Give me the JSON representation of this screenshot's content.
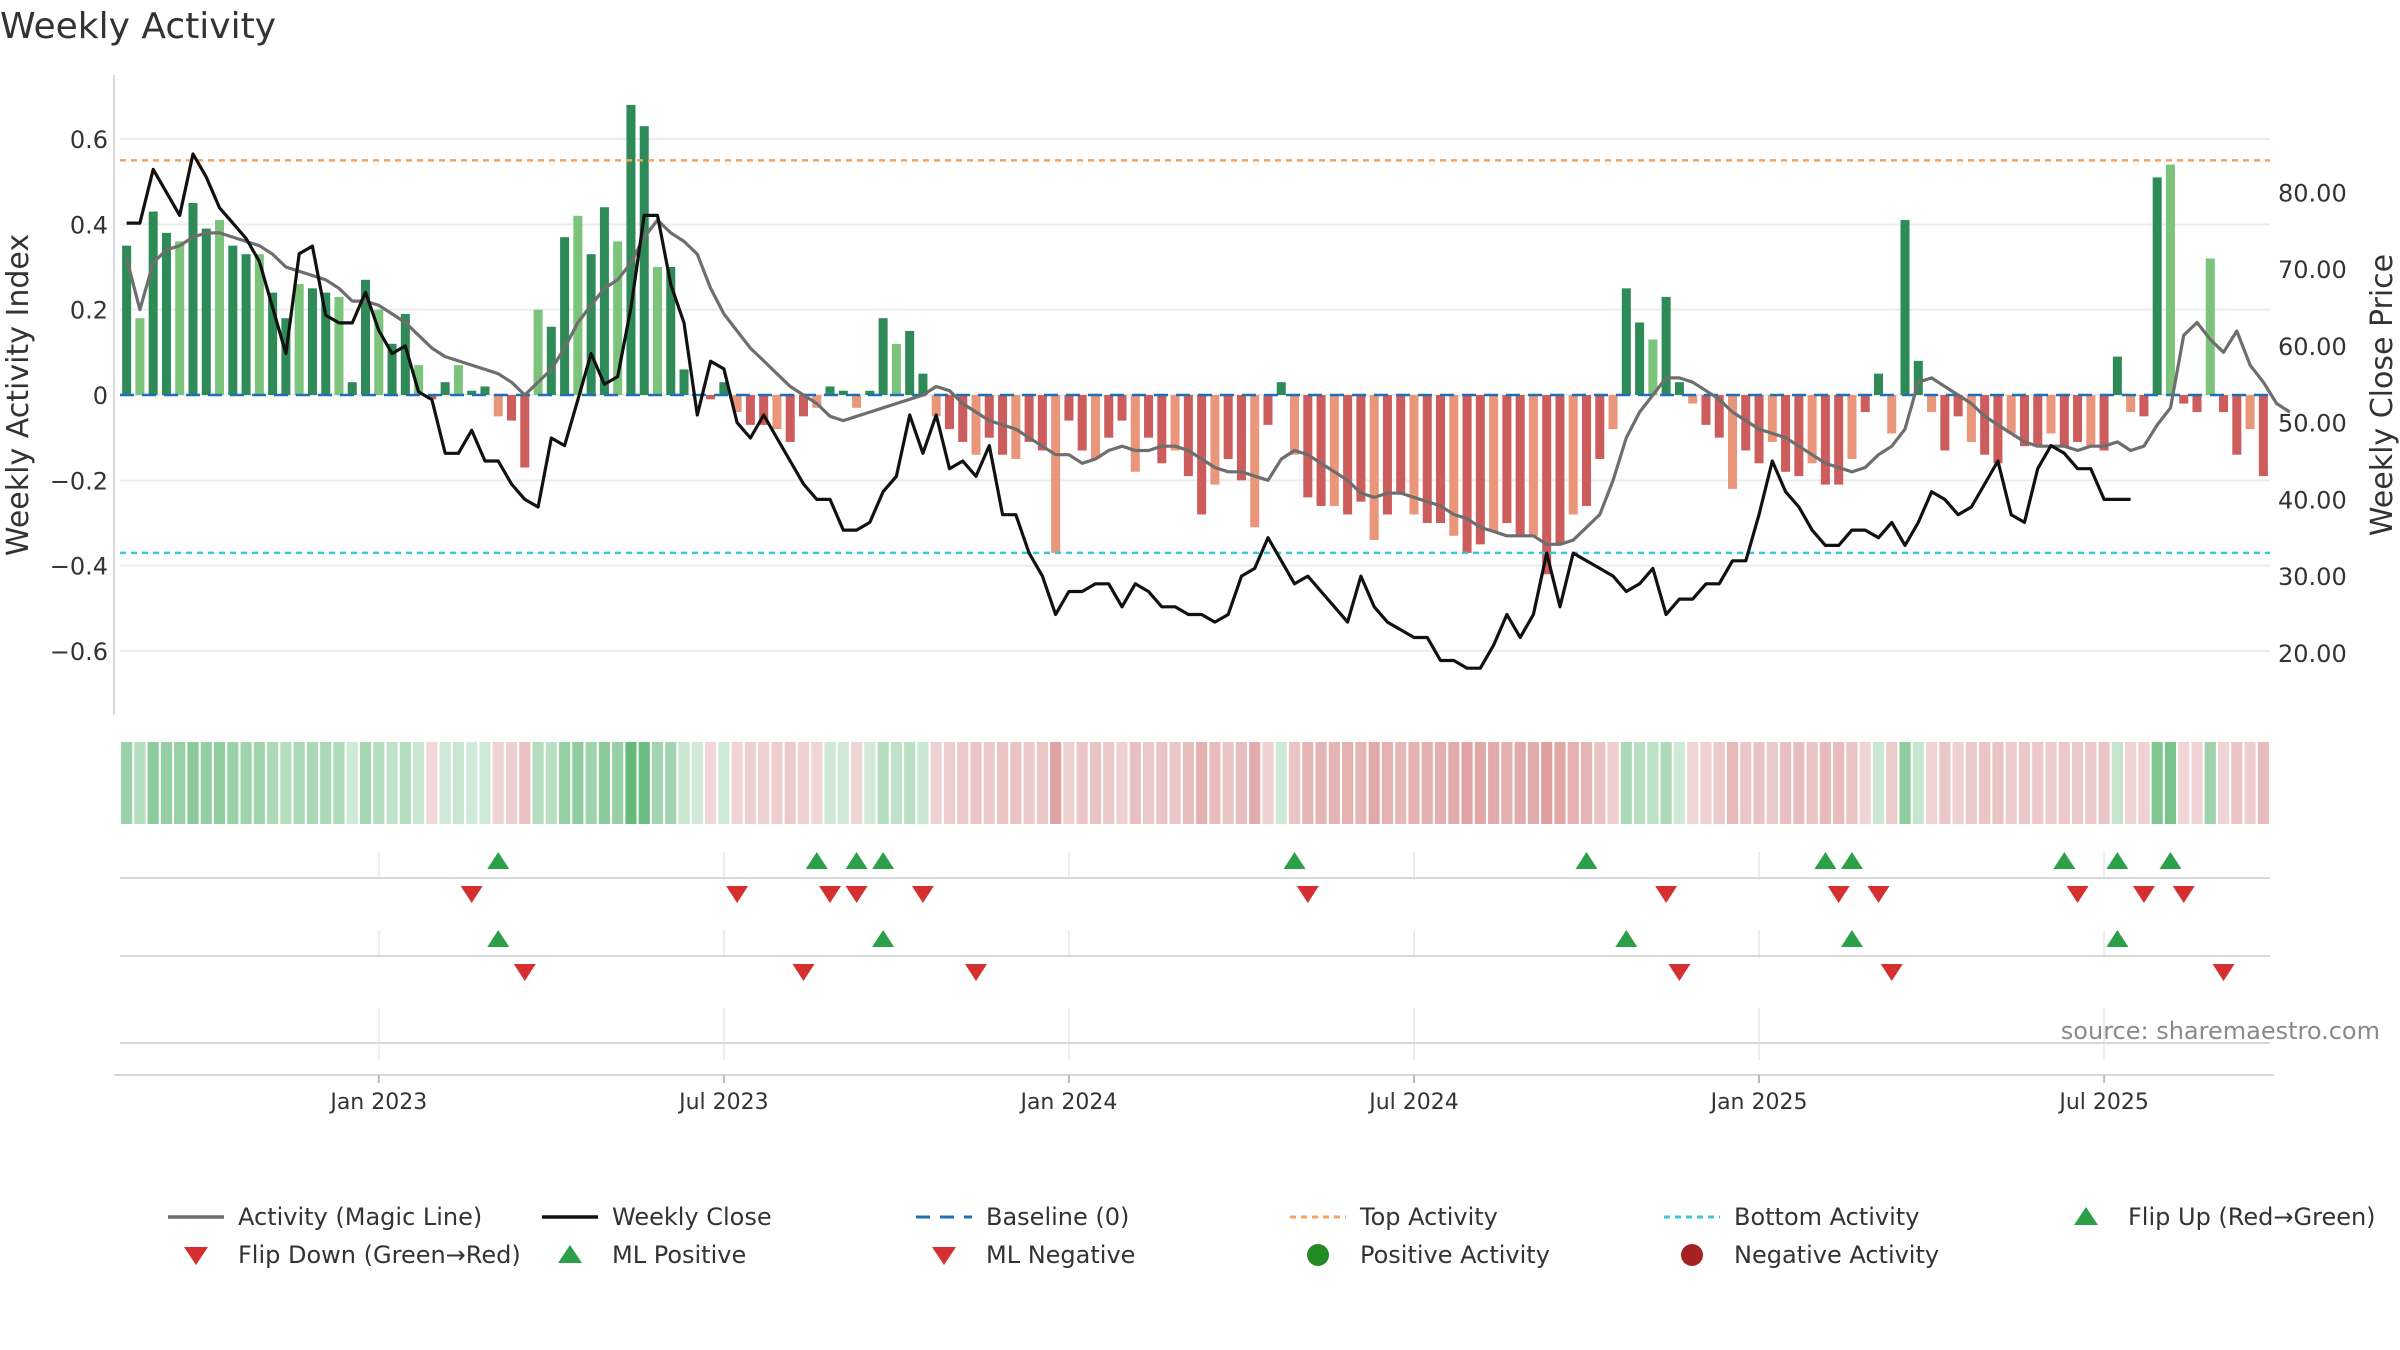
{
  "chart_data": {
    "type": "bar",
    "title": "Weekly Activity",
    "ylabel": "Weekly Activity Index",
    "y2label": "Weekly Close Price",
    "ylim": [
      -0.75,
      0.75
    ],
    "y2lim": [
      11.9,
      95.3
    ],
    "yticks": [
      {
        "v": 0.6,
        "label": "0.6"
      },
      {
        "v": 0.4,
        "label": "0.4"
      },
      {
        "v": 0.2,
        "label": "0.2"
      },
      {
        "v": 0,
        "label": "0"
      },
      {
        "v": -0.2,
        "label": "−0.2"
      },
      {
        "v": -0.4,
        "label": "−0.4"
      },
      {
        "v": -0.6,
        "label": "−0.6"
      }
    ],
    "y2ticks": [
      {
        "v": 80,
        "label": "80.00"
      },
      {
        "v": 70,
        "label": "70.00"
      },
      {
        "v": 60,
        "label": "60.00"
      },
      {
        "v": 50,
        "label": "50.00"
      },
      {
        "v": 40,
        "label": "40.00"
      },
      {
        "v": 30,
        "label": "30.00"
      },
      {
        "v": 20,
        "label": "20.00"
      }
    ],
    "xticks": [
      {
        "week": 19,
        "label": "Jan 2023"
      },
      {
        "week": 45,
        "label": "Jul 2023"
      },
      {
        "week": 71,
        "label": "Jan 2024"
      },
      {
        "week": 97,
        "label": "Jul 2024"
      },
      {
        "week": 123,
        "label": "Jan 2025"
      },
      {
        "week": 149,
        "label": "Jul 2025"
      }
    ],
    "top_activity": 0.55,
    "bottom_activity": -0.37,
    "activity": [
      0.35,
      0.18,
      0.43,
      0.38,
      0.36,
      0.45,
      0.39,
      0.41,
      0.35,
      0.33,
      0.33,
      0.24,
      0.18,
      0.26,
      0.25,
      0.24,
      0.23,
      0.03,
      0.27,
      0.2,
      0.12,
      0.19,
      0.07,
      -0.01,
      0.03,
      0.07,
      0.01,
      0.02,
      -0.05,
      -0.06,
      -0.17,
      0.2,
      0.16,
      0.37,
      0.42,
      0.33,
      0.44,
      0.36,
      0.68,
      0.63,
      0.3,
      0.3,
      0.06,
      0.0,
      -0.01,
      0.03,
      -0.04,
      -0.07,
      -0.07,
      -0.08,
      -0.11,
      -0.05,
      -0.03,
      0.02,
      0.01,
      -0.03,
      0.01,
      0.18,
      0.12,
      0.15,
      0.05,
      -0.05,
      -0.08,
      -0.11,
      -0.14,
      -0.1,
      -0.14,
      -0.15,
      -0.11,
      -0.13,
      -0.37,
      -0.06,
      -0.13,
      -0.15,
      -0.1,
      -0.06,
      -0.18,
      -0.1,
      -0.16,
      -0.13,
      -0.19,
      -0.28,
      -0.21,
      -0.15,
      -0.2,
      -0.31,
      -0.07,
      0.03,
      -0.14,
      -0.24,
      -0.26,
      -0.26,
      -0.28,
      -0.25,
      -0.34,
      -0.28,
      -0.23,
      -0.28,
      -0.3,
      -0.3,
      -0.33,
      -0.37,
      -0.35,
      -0.32,
      -0.3,
      -0.33,
      -0.33,
      -0.42,
      -0.35,
      -0.28,
      -0.26,
      -0.15,
      -0.08,
      0.25,
      0.17,
      0.13,
      0.23,
      0.03,
      -0.02,
      -0.07,
      -0.1,
      -0.22,
      -0.13,
      -0.16,
      -0.11,
      -0.18,
      -0.19,
      -0.16,
      -0.21,
      -0.21,
      -0.15,
      -0.04,
      0.05,
      -0.09,
      0.41,
      0.08,
      -0.04,
      -0.13,
      -0.05,
      -0.11,
      -0.14,
      -0.16,
      -0.09,
      -0.12,
      -0.12,
      -0.09,
      -0.12,
      -0.11,
      -0.12,
      -0.13,
      0.09,
      -0.04,
      -0.05,
      0.51,
      0.54,
      -0.02,
      -0.04,
      0.32,
      -0.04,
      -0.14,
      -0.08,
      -0.19
    ],
    "magic_line": [
      0.32,
      0.2,
      0.31,
      0.34,
      0.35,
      0.37,
      0.38,
      0.38,
      0.37,
      0.36,
      0.35,
      0.33,
      0.3,
      0.29,
      0.28,
      0.27,
      0.25,
      0.22,
      0.22,
      0.21,
      0.19,
      0.17,
      0.14,
      0.11,
      0.09,
      0.08,
      0.07,
      0.06,
      0.05,
      0.03,
      0.0,
      0.03,
      0.06,
      0.11,
      0.17,
      0.21,
      0.25,
      0.27,
      0.31,
      0.37,
      0.41,
      0.38,
      0.36,
      0.33,
      0.25,
      0.19,
      0.15,
      0.11,
      0.08,
      0.05,
      0.02,
      0.0,
      -0.02,
      -0.05,
      -0.06,
      -0.05,
      -0.04,
      -0.03,
      -0.02,
      -0.01,
      0.0,
      0.02,
      0.01,
      -0.02,
      -0.04,
      -0.06,
      -0.07,
      -0.08,
      -0.1,
      -0.12,
      -0.14,
      -0.14,
      -0.16,
      -0.15,
      -0.13,
      -0.12,
      -0.13,
      -0.13,
      -0.12,
      -0.12,
      -0.13,
      -0.15,
      -0.17,
      -0.18,
      -0.18,
      -0.19,
      -0.2,
      -0.15,
      -0.13,
      -0.14,
      -0.16,
      -0.18,
      -0.2,
      -0.23,
      -0.24,
      -0.23,
      -0.23,
      -0.24,
      -0.25,
      -0.26,
      -0.28,
      -0.29,
      -0.31,
      -0.32,
      -0.33,
      -0.33,
      -0.33,
      -0.35,
      -0.35,
      -0.34,
      -0.31,
      -0.28,
      -0.2,
      -0.1,
      -0.04,
      0.0,
      0.04,
      0.04,
      0.03,
      0.01,
      -0.01,
      -0.04,
      -0.06,
      -0.08,
      -0.09,
      -0.1,
      -0.12,
      -0.14,
      -0.16,
      -0.17,
      -0.18,
      -0.17,
      -0.14,
      -0.12,
      -0.08,
      0.03,
      0.04,
      0.02,
      0.0,
      -0.02,
      -0.05,
      -0.07,
      -0.09,
      -0.11,
      -0.12,
      -0.12,
      -0.12,
      -0.13,
      -0.12,
      -0.12,
      -0.11,
      -0.13,
      -0.12,
      -0.07,
      -0.03,
      0.14,
      0.17,
      0.13,
      0.1,
      0.15,
      0.07,
      0.03,
      -0.02,
      -0.04
    ],
    "weekly_close": [
      76,
      76,
      83,
      80,
      77,
      85,
      82,
      78,
      76,
      74,
      71,
      65,
      59,
      72,
      73,
      64,
      63,
      63,
      67,
      62,
      59,
      60,
      54,
      53,
      46,
      46,
      49,
      45,
      45,
      42,
      40,
      39,
      48,
      47,
      53,
      59,
      55,
      56,
      65,
      77,
      77,
      68,
      63,
      51,
      58,
      57,
      50,
      48,
      51,
      48,
      45,
      42,
      40,
      40,
      36,
      36,
      37,
      41,
      43,
      51,
      46,
      51,
      44,
      45,
      43,
      47,
      38,
      38,
      33,
      30,
      25,
      28,
      28,
      29,
      29,
      26,
      29,
      28,
      26,
      26,
      25,
      25,
      24,
      25,
      30,
      31,
      35,
      32,
      29,
      30,
      28,
      26,
      24,
      30,
      26,
      24,
      23,
      22,
      22,
      19,
      19,
      18,
      18,
      21,
      25,
      22,
      25,
      33,
      26,
      33,
      32,
      31,
      30,
      28,
      29,
      31,
      25,
      27,
      27,
      29,
      29,
      32,
      32,
      38,
      45,
      41,
      39,
      36,
      34,
      34,
      36,
      36,
      35,
      37,
      34,
      37,
      41,
      40,
      38,
      39,
      42,
      45,
      38,
      37,
      44,
      47,
      46,
      44,
      44,
      40,
      40,
      40
    ],
    "flip_up": [
      28,
      52,
      55,
      57,
      88,
      110,
      128,
      130,
      146,
      150,
      154
    ],
    "flip_down": [
      26,
      46,
      53,
      55,
      60,
      89,
      116,
      129,
      132,
      147,
      152,
      155
    ],
    "ml_positive": [
      28,
      57,
      113,
      130,
      150
    ],
    "ml_negative": [
      30,
      51,
      64,
      117,
      133,
      158
    ],
    "source": "source: sharemaestro.com",
    "legend": [
      {
        "key": "magic_line",
        "label": "Activity (Magic Line)",
        "color": "#6e6e6e"
      },
      {
        "key": "close",
        "label": "Weekly Close",
        "color": "#111111"
      },
      {
        "key": "baseline",
        "label": "Baseline (0)",
        "color": "#1f6fb4"
      },
      {
        "key": "top",
        "label": "Top Activity",
        "color": "#f4a261"
      },
      {
        "key": "bottom",
        "label": "Bottom Activity",
        "color": "#3ac7d6"
      },
      {
        "key": "flip_up",
        "label": "Flip Up (Red→Green)",
        "color": "#2ca048"
      },
      {
        "key": "flip_down",
        "label": "Flip Down (Green→Red)",
        "color": "#d62f2f"
      },
      {
        "key": "ml_positive",
        "label": "ML Positive",
        "color": "#2ca048"
      },
      {
        "key": "ml_negative",
        "label": "ML Negative",
        "color": "#d62f2f"
      },
      {
        "key": "pos_activity",
        "label": "Positive Activity",
        "color": "#248a24"
      },
      {
        "key": "neg_activity",
        "label": "Negative Activity",
        "color": "#a42222"
      }
    ],
    "colors": {
      "pos_dark": "#2e8b57",
      "pos_light": "#7cc47c",
      "neg_dark": "#cd5c5c",
      "neg_light": "#e9967a",
      "grid": "#ececec",
      "axis": "#d9d9d9"
    }
  }
}
